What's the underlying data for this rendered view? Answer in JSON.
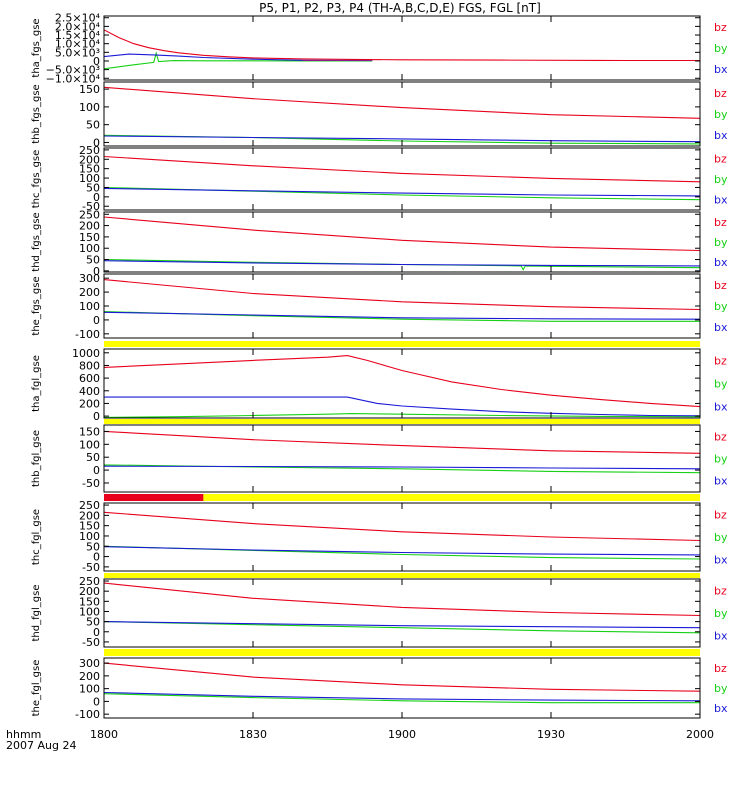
{
  "page": {
    "title": "P5, P1, P2, P3, P4 (TH-A,B,C,D,E) FGS, FGL [nT]",
    "time_unit_label": "hhmm",
    "date_label": "2007 Aug 24"
  },
  "chart_data": {
    "type": "line",
    "title": "P5, P1, P2, P3, P4 (TH-A,B,C,D,E) FGS, FGL [nT]",
    "xlabel": "hhmm",
    "x_date": "2007 Aug 24",
    "xlim_minutes": [
      0,
      120
    ],
    "x_ticks": [
      {
        "value": 0,
        "label": "1800"
      },
      {
        "value": 30,
        "label": "1830"
      },
      {
        "value": 60,
        "label": "1900"
      },
      {
        "value": 90,
        "label": "1930"
      },
      {
        "value": 120,
        "label": "2000"
      }
    ],
    "colors": {
      "bz": "#e8001c",
      "by": "#16d116",
      "bx": "#1a1ad6",
      "yellow_bar": "#ffff00",
      "red_bar": "#e8001c"
    },
    "legend": [
      "bz",
      "by",
      "bx"
    ],
    "panels": [
      {
        "name": "tha_fgs_gse",
        "ylabel": "tha_fgs_gse",
        "ylim": [
          -11000,
          26000
        ],
        "y_ticks": [
          {
            "value": 25000,
            "label": "2.5×10⁴"
          },
          {
            "value": 20000,
            "label": "2.0×10⁴"
          },
          {
            "value": 15000,
            "label": "1.5×10⁴"
          },
          {
            "value": 10000,
            "label": "1.0×10⁴"
          },
          {
            "value": 5000,
            "label": "5.0×10³"
          },
          {
            "value": 0,
            "label": "0"
          },
          {
            "value": -5000,
            "label": "−5.0×10³"
          },
          {
            "value": -10000,
            "label": "−1.0×10⁴"
          }
        ],
        "series": [
          {
            "name": "bz",
            "x": [
              0,
              3,
              6,
              9,
              12,
              15,
              20,
              25,
              30,
              40,
              50,
              60,
              80,
              100,
              105,
              120
            ],
            "y": [
              18000,
              13500,
              10000,
              7700,
              6000,
              4700,
              3300,
              2400,
              1800,
              1200,
              900,
              700,
              500,
              350,
              300,
              300
            ]
          },
          {
            "name": "by",
            "x": [
              0,
              6,
              10,
              10.5,
              11,
              14,
              20,
              30,
              40,
              54
            ],
            "y": [
              -4500,
              -2200,
              -800,
              4500,
              -300,
              200,
              100,
              100,
              50,
              0
            ]
          },
          {
            "name": "bx",
            "x": [
              0,
              5,
              10,
              15,
              20,
              30,
              40,
              54
            ],
            "y": [
              2500,
              4000,
              3500,
              2800,
              2000,
              1000,
              400,
              200
            ]
          },
          {
            "name": "purple_overlap",
            "color": "#8b1a8b",
            "x": [
              40,
              54
            ],
            "y": [
              300,
              300
            ]
          }
        ],
        "bar": null
      },
      {
        "name": "thb_fgs_gse",
        "ylabel": "thb_fgs_gse",
        "ylim": [
          -10,
          170
        ],
        "y_ticks": [
          {
            "value": 150,
            "label": "150"
          },
          {
            "value": 100,
            "label": "100"
          },
          {
            "value": 50,
            "label": "50"
          },
          {
            "value": 0,
            "label": "0"
          }
        ],
        "series": [
          {
            "name": "bz",
            "x": [
              0,
              30,
              60,
              90,
              120
            ],
            "y": [
              155,
              123,
              98,
              78,
              68
            ]
          },
          {
            "name": "by",
            "x": [
              0,
              30,
              60,
              90,
              120
            ],
            "y": [
              20,
              14,
              4,
              -2,
              -4
            ]
          },
          {
            "name": "bx",
            "x": [
              0,
              30,
              60,
              90,
              120
            ],
            "y": [
              18,
              14,
              10,
              5,
              2
            ]
          }
        ],
        "bar": null
      },
      {
        "name": "thc_fgs_gse",
        "ylabel": "thc_fgs_gse",
        "ylim": [
          -70,
          260
        ],
        "y_ticks": [
          {
            "value": 250,
            "label": "250"
          },
          {
            "value": 200,
            "label": "200"
          },
          {
            "value": 150,
            "label": "150"
          },
          {
            "value": 100,
            "label": "100"
          },
          {
            "value": 50,
            "label": "50"
          },
          {
            "value": 0,
            "label": "0"
          },
          {
            "value": -50,
            "label": "-50"
          }
        ],
        "series": [
          {
            "name": "bz",
            "x": [
              0,
              30,
              60,
              90,
              120
            ],
            "y": [
              215,
              165,
              125,
              98,
              80
            ]
          },
          {
            "name": "by",
            "x": [
              0,
              30,
              60,
              90,
              120
            ],
            "y": [
              50,
              30,
              10,
              -5,
              -15
            ]
          },
          {
            "name": "bx",
            "x": [
              0,
              30,
              60,
              90,
              120
            ],
            "y": [
              45,
              32,
              20,
              10,
              5
            ]
          }
        ],
        "bar": null
      },
      {
        "name": "thd_fgs_gse",
        "ylabel": "thd_fgs_gse",
        "ylim": [
          -5,
          260
        ],
        "y_ticks": [
          {
            "value": 250,
            "label": "250"
          },
          {
            "value": 200,
            "label": "200"
          },
          {
            "value": 150,
            "label": "150"
          },
          {
            "value": 100,
            "label": "100"
          },
          {
            "value": 50,
            "label": "50"
          },
          {
            "value": 0,
            "label": "0"
          }
        ],
        "series": [
          {
            "name": "bz",
            "x": [
              0,
              30,
              60,
              90,
              120
            ],
            "y": [
              238,
              180,
              135,
              105,
              90
            ]
          },
          {
            "name": "by",
            "x": [
              0,
              30,
              60,
              84,
              84.4,
              84.8,
              90,
              120
            ],
            "y": [
              50,
              38,
              28,
              22,
              5,
              22,
              20,
              14
            ]
          },
          {
            "name": "bx",
            "x": [
              0,
              30,
              60,
              90,
              120
            ],
            "y": [
              45,
              35,
              28,
              24,
              22
            ]
          }
        ],
        "bar": null
      },
      {
        "name": "the_fgs_gse",
        "ylabel": "the_fgs_gse",
        "ylim": [
          -130,
          330
        ],
        "y_ticks": [
          {
            "value": 300,
            "label": "300"
          },
          {
            "value": 200,
            "label": "200"
          },
          {
            "value": 100,
            "label": "100"
          },
          {
            "value": 0,
            "label": "0"
          },
          {
            "value": -100,
            "label": "-100"
          }
        ],
        "series": [
          {
            "name": "bz",
            "x": [
              0,
              30,
              60,
              90,
              120
            ],
            "y": [
              290,
              190,
              130,
              95,
              75
            ]
          },
          {
            "name": "by",
            "x": [
              0,
              30,
              60,
              90,
              120
            ],
            "y": [
              60,
              30,
              5,
              -10,
              -10
            ]
          },
          {
            "name": "bx",
            "x": [
              0,
              30,
              60,
              90,
              120
            ],
            "y": [
              55,
              35,
              15,
              8,
              5
            ]
          }
        ],
        "bar": {
          "color": "yellow"
        }
      },
      {
        "name": "tha_fgl_gse",
        "ylabel": "tha_fgl_gse",
        "ylim": [
          -30,
          1060
        ],
        "y_ticks": [
          {
            "value": 1000,
            "label": "1000"
          },
          {
            "value": 800,
            "label": "800"
          },
          {
            "value": 600,
            "label": "600"
          },
          {
            "value": 400,
            "label": "400"
          },
          {
            "value": 200,
            "label": "200"
          },
          {
            "value": 0,
            "label": "0"
          }
        ],
        "series": [
          {
            "name": "bz",
            "x": [
              0,
              15,
              30,
              45,
              49,
              53,
              60,
              70,
              80,
              90,
              100,
              110,
              120
            ],
            "y": [
              770,
              825,
              880,
              930,
              955,
              880,
              720,
              540,
              420,
              330,
              260,
              200,
              150
            ]
          },
          {
            "name": "by",
            "x": [
              0,
              15,
              30,
              45,
              50,
              60,
              80,
              100,
              120
            ],
            "y": [
              -20,
              -10,
              10,
              30,
              40,
              30,
              10,
              -5,
              -10
            ]
          },
          {
            "name": "bx",
            "x": [
              0,
              15,
              30,
              45,
              49,
              55,
              60,
              70,
              80,
              90,
              100,
              110,
              120
            ],
            "y": [
              300,
              300,
              300,
              300,
              300,
              200,
              160,
              110,
              70,
              45,
              25,
              10,
              5
            ]
          }
        ],
        "bar": {
          "color": "yellow"
        }
      },
      {
        "name": "thb_fgl_gse",
        "ylabel": "thb_fgl_gse",
        "ylim": [
          -85,
          175
        ],
        "y_ticks": [
          {
            "value": 150,
            "label": "150"
          },
          {
            "value": 100,
            "label": "100"
          },
          {
            "value": 50,
            "label": "50"
          },
          {
            "value": 0,
            "label": "0"
          },
          {
            "value": -50,
            "label": "-50"
          }
        ],
        "series": [
          {
            "name": "bz",
            "x": [
              0,
              30,
              60,
              90,
              120
            ],
            "y": [
              150,
              118,
              95,
              75,
              65
            ]
          },
          {
            "name": "by",
            "x": [
              0,
              30,
              60,
              90,
              120
            ],
            "y": [
              20,
              12,
              5,
              -5,
              -10
            ]
          },
          {
            "name": "bx",
            "x": [
              0,
              30,
              60,
              90,
              120
            ],
            "y": [
              15,
              14,
              12,
              8,
              5
            ]
          }
        ],
        "bar": {
          "color": "yellow",
          "red_until_minute": 20
        }
      },
      {
        "name": "thc_fgl_gse",
        "ylabel": "thc_fgl_gse",
        "ylim": [
          -70,
          260
        ],
        "y_ticks": [
          {
            "value": 250,
            "label": "250"
          },
          {
            "value": 200,
            "label": "200"
          },
          {
            "value": 150,
            "label": "150"
          },
          {
            "value": 100,
            "label": "100"
          },
          {
            "value": 50,
            "label": "50"
          },
          {
            "value": 0,
            "label": "0"
          },
          {
            "value": -50,
            "label": "-50"
          }
        ],
        "series": [
          {
            "name": "bz",
            "x": [
              0,
              30,
              60,
              90,
              120
            ],
            "y": [
              215,
              160,
              120,
              95,
              78
            ]
          },
          {
            "name": "by",
            "x": [
              0,
              30,
              60,
              90,
              120
            ],
            "y": [
              50,
              30,
              10,
              -5,
              -12
            ]
          },
          {
            "name": "bx",
            "x": [
              0,
              30,
              60,
              90,
              120
            ],
            "y": [
              48,
              32,
              20,
              12,
              8
            ]
          }
        ],
        "bar": {
          "color": "yellow"
        }
      },
      {
        "name": "thd_fgl_gse",
        "ylabel": "thd_fgl_gse",
        "ylim": [
          -75,
          260
        ],
        "y_ticks": [
          {
            "value": 250,
            "label": "250"
          },
          {
            "value": 200,
            "label": "200"
          },
          {
            "value": 150,
            "label": "150"
          },
          {
            "value": 100,
            "label": "100"
          },
          {
            "value": 50,
            "label": "50"
          },
          {
            "value": 0,
            "label": "0"
          },
          {
            "value": -50,
            "label": "-50"
          }
        ],
        "series": [
          {
            "name": "bz",
            "x": [
              0,
              30,
              60,
              90,
              120
            ],
            "y": [
              240,
              165,
              120,
              95,
              80
            ]
          },
          {
            "name": "by",
            "x": [
              0,
              30,
              60,
              90,
              120
            ],
            "y": [
              50,
              35,
              20,
              5,
              -5
            ]
          },
          {
            "name": "bx",
            "x": [
              0,
              30,
              60,
              90,
              120
            ],
            "y": [
              50,
              40,
              30,
              25,
              20
            ]
          }
        ],
        "bar": {
          "color": "yellow"
        }
      },
      {
        "name": "the_fgl_gse",
        "ylabel": "the_fgl_gse",
        "ylim": [
          -130,
          340
        ],
        "y_ticks": [
          {
            "value": 300,
            "label": "300"
          },
          {
            "value": 200,
            "label": "200"
          },
          {
            "value": 100,
            "label": "100"
          },
          {
            "value": 0,
            "label": "0"
          },
          {
            "value": -100,
            "label": "-100"
          }
        ],
        "series": [
          {
            "name": "bz",
            "x": [
              0,
              30,
              60,
              90,
              120
            ],
            "y": [
              300,
              190,
              130,
              95,
              80
            ]
          },
          {
            "name": "by",
            "x": [
              0,
              30,
              60,
              90,
              120
            ],
            "y": [
              60,
              30,
              5,
              -10,
              -10
            ]
          },
          {
            "name": "bx",
            "x": [
              0,
              30,
              60,
              90,
              120
            ],
            "y": [
              70,
              40,
              20,
              10,
              5
            ]
          }
        ],
        "bar": null
      }
    ]
  }
}
